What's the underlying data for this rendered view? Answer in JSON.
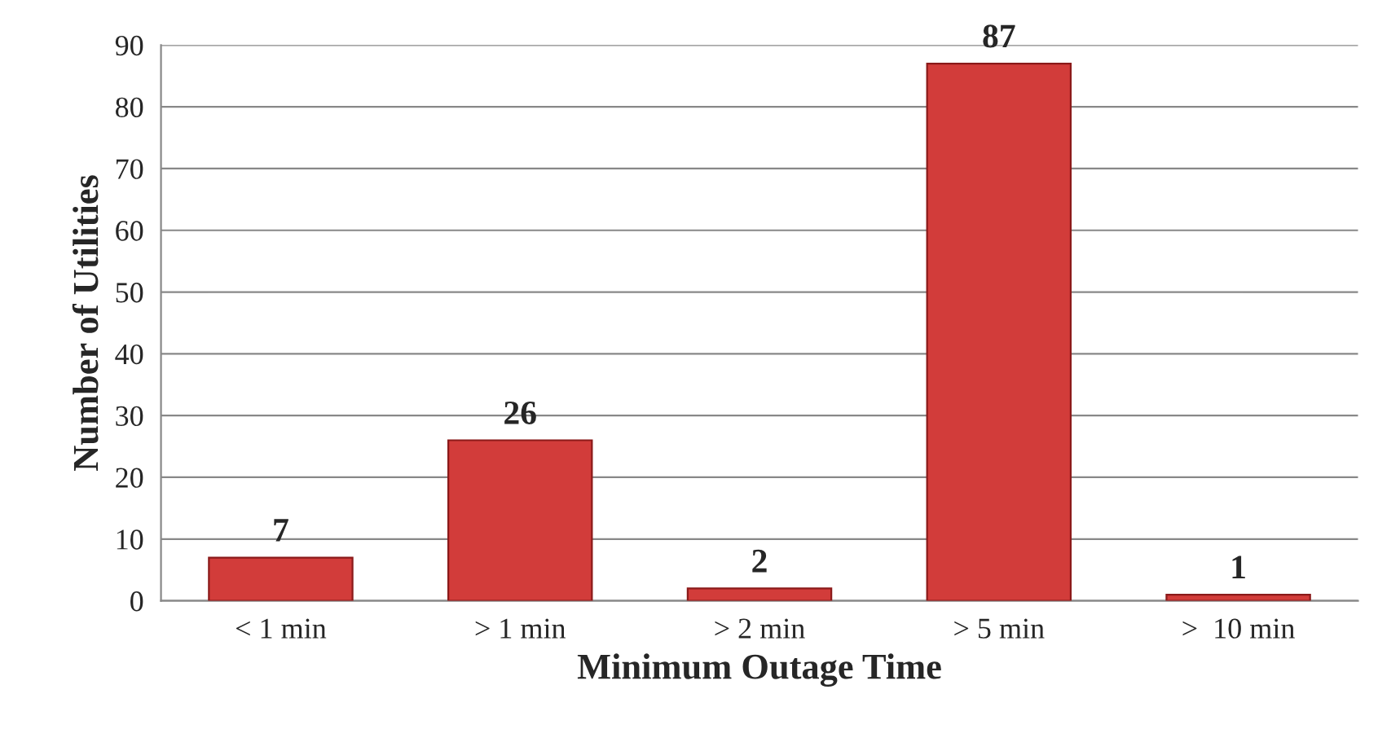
{
  "chart_data": {
    "type": "bar",
    "xlabel": "Minimum Outage Time",
    "ylabel": "Number of Utilities",
    "categories": [
      "< 1 min",
      "> 1 min",
      "> 2 min",
      "> 5 min",
      ">  10 min"
    ],
    "values": [
      7,
      26,
      2,
      87,
      1
    ],
    "color": "#d23c3a",
    "ylim": [
      0,
      90
    ],
    "yticks": [
      0,
      10,
      20,
      30,
      40,
      50,
      60,
      70,
      80,
      90
    ],
    "grid": "y",
    "data_labels": true
  }
}
